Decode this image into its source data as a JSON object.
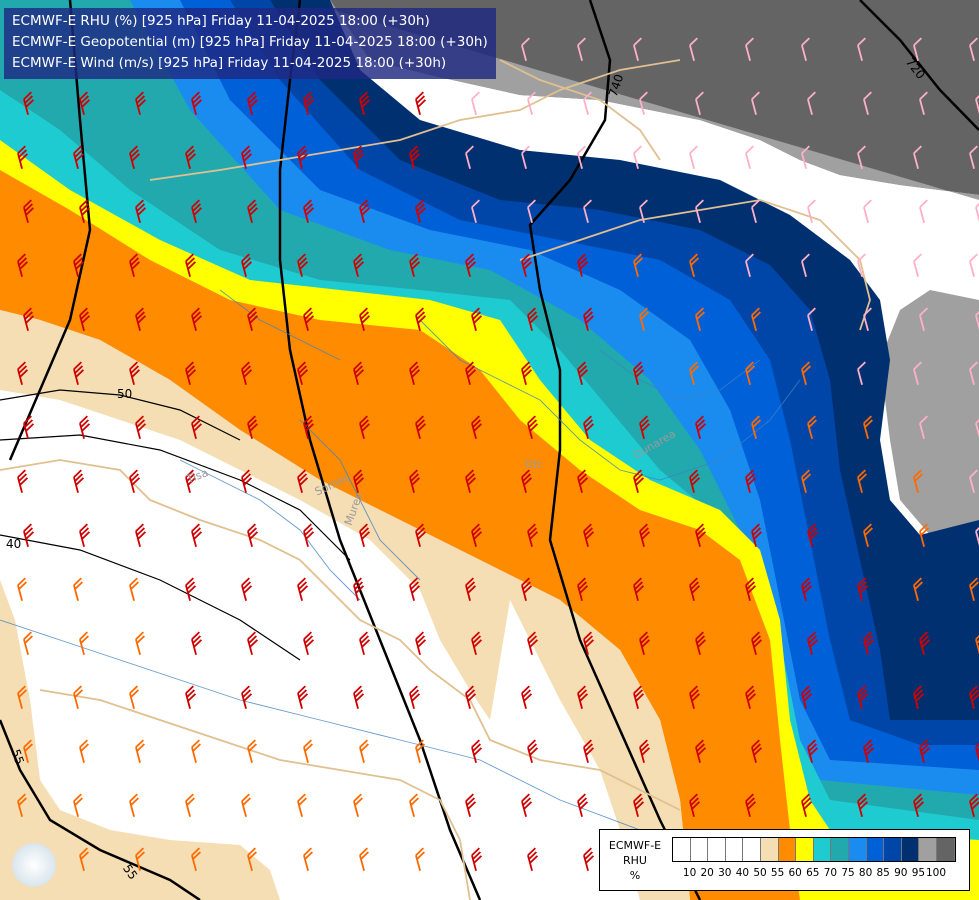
{
  "title_lines": [
    "ECMWF-E RHU (%) [925 hPa] Friday 11-04-2025 18:00 (+30h)",
    "ECMWF-E Geopotential (m) [925 hPa] Friday 11-04-2025 18:00 (+30h)",
    "ECMWF-E Wind (m/s) [925 hPa] Friday 11-04-2025 18:00 (+30h)"
  ],
  "legend": {
    "label_lines": [
      "ECMWF-E",
      "RHU",
      "%"
    ],
    "ticks": [
      "10",
      "20",
      "30",
      "40",
      "50",
      "55",
      "60",
      "65",
      "70",
      "75",
      "80",
      "85",
      "90",
      "95",
      "100"
    ],
    "colors": [
      "#ffffff",
      "#ffffff",
      "#ffffff",
      "#ffffff",
      "#ffffff",
      "#f5deb3",
      "#ff8c00",
      "#ffff00",
      "#1ecbd0",
      "#22a9ae",
      "#1a8cf0",
      "#0060d8",
      "#0046a8",
      "#003070",
      "#a0a0a0",
      "#646464"
    ]
  },
  "geopotential_labels": [
    "740",
    "720",
    "50",
    "40",
    "55",
    "55"
  ],
  "place_labels": [
    "Tisa",
    "Somes",
    "Mures",
    "Olt",
    "Dunarea"
  ],
  "colors": {
    "rhu_55": "#f5deb3",
    "rhu_60": "#ff8c00",
    "rhu_65": "#ffff00",
    "rhu_70": "#1ecbd0",
    "rhu_75": "#22a9ae",
    "rhu_80": "#1a8cf0",
    "rhu_85": "#0060d8",
    "rhu_90": "#0046a8",
    "rhu_95": "#003070",
    "rhu_100_light": "#a0a0a0",
    "rhu_100_dark": "#646464",
    "wind_barb_red": "#d00000",
    "wind_barb_orange": "#ff6a00",
    "wind_barb_pink": "#ffb0c8",
    "border_tan": "#e0c090",
    "river_blue": "#4080c0"
  }
}
